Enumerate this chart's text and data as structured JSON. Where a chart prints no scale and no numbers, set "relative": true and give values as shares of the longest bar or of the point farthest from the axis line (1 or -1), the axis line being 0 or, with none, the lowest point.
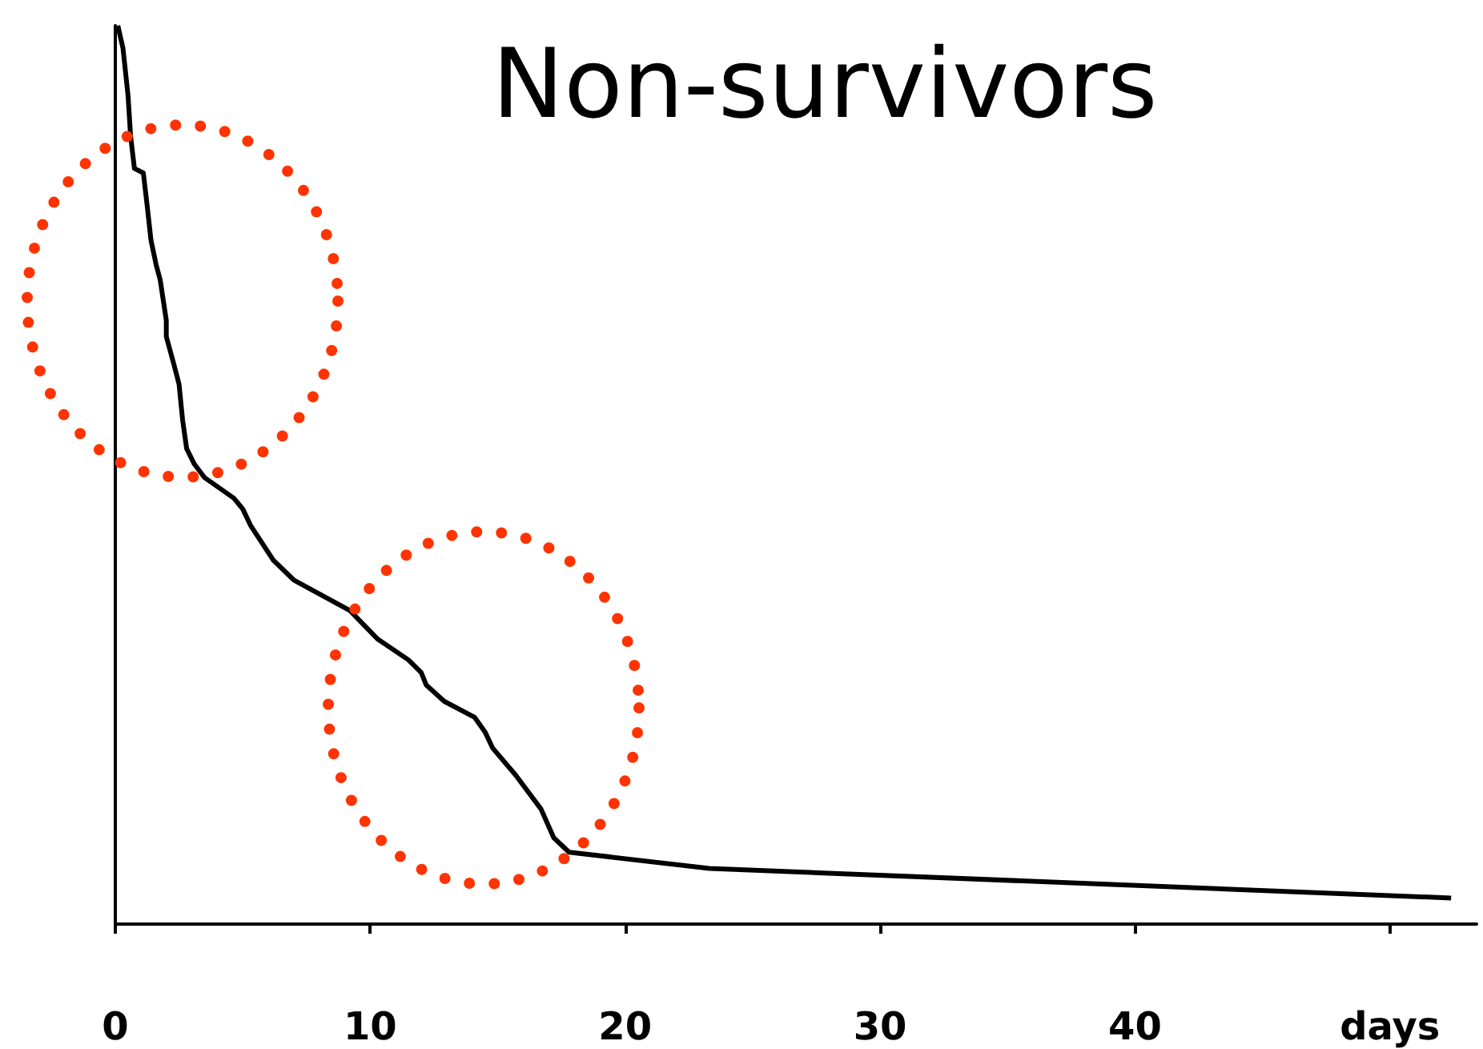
{
  "chart_data": {
    "type": "line",
    "title": "Non-survivors",
    "relative": true,
    "tick_labels": "x",
    "marker": "none",
    "line_style": "solid",
    "grid": false,
    "xlim": [
      0,
      53.4
    ],
    "xticks": [
      0,
      10,
      20,
      30,
      40,
      {
        "value": 50,
        "label": "days"
      }
    ],
    "series": [
      {
        "color": "#000000",
        "x": [
          0.1,
          0.3,
          0.5,
          0.6,
          0.75,
          1.1,
          1.26,
          1.4,
          1.6,
          1.76,
          2.0,
          2.0,
          2.26,
          2.5,
          2.64,
          2.8,
          3.1,
          3.5,
          4.65,
          5.0,
          5.3,
          6.2,
          7.0,
          9.2,
          10.3,
          11.5,
          12.0,
          12.2,
          12.9,
          14.1,
          14.5,
          14.8,
          15.7,
          16.7,
          17.2,
          17.8,
          23.3,
          52.4
        ],
        "values": [
          1,
          0.975,
          0.922,
          0.877,
          0.841,
          0.836,
          0.797,
          0.761,
          0.734,
          0.717,
          0.672,
          0.654,
          0.627,
          0.601,
          0.561,
          0.529,
          0.512,
          0.497,
          0.474,
          0.462,
          0.444,
          0.405,
          0.383,
          0.349,
          0.317,
          0.294,
          0.28,
          0.266,
          0.248,
          0.23,
          0.214,
          0.196,
          0.166,
          0.128,
          0.096,
          0.08,
          0.062,
          0.029
        ]
      }
    ]
  }
}
